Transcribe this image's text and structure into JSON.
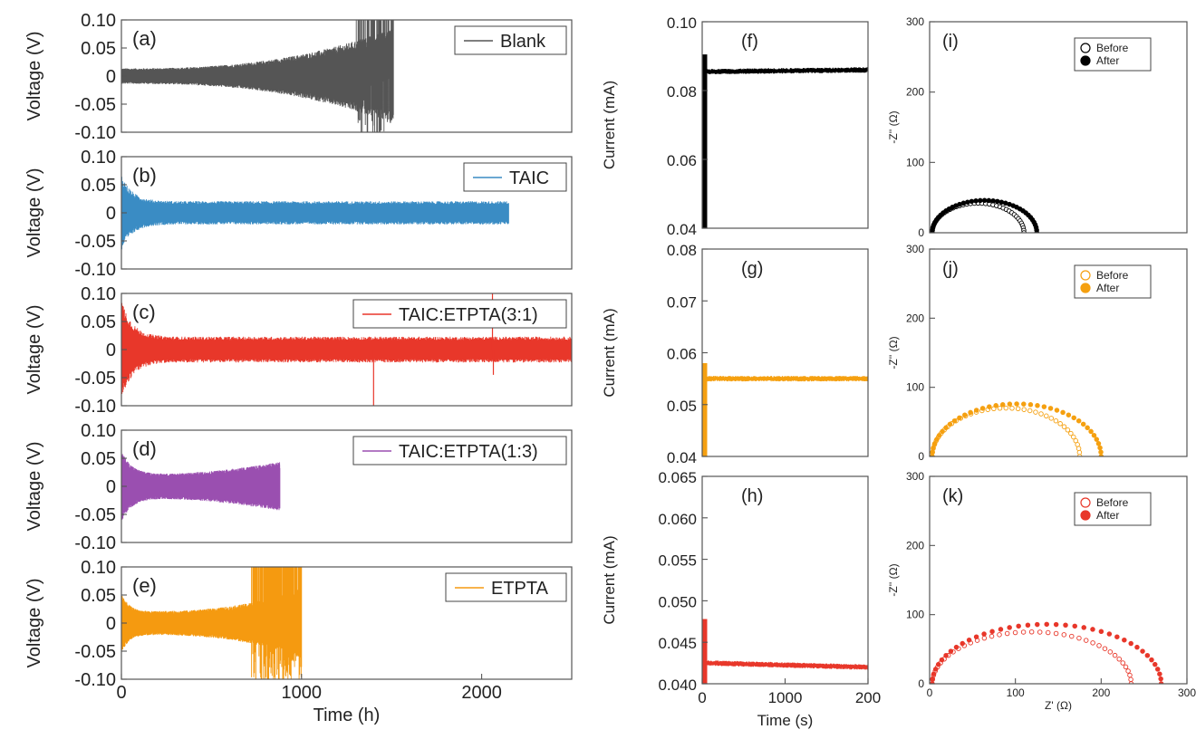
{
  "chart_data": [
    {
      "type": "line",
      "panel_label": "(a)",
      "series": [
        {
          "name": "Blank",
          "color": "#555555",
          "duration_h": 1510,
          "amp_start": 0.012,
          "amp_end": 0.075,
          "overflow_from_h": 1300
        }
      ],
      "ylabel": "Voltage (V)",
      "ylim": [
        -0.1,
        0.1
      ],
      "yticks": [
        "0.10",
        "0.05",
        "0",
        "-0.05",
        "-0.10"
      ],
      "xlim": [
        0,
        2500
      ],
      "xticks": [],
      "xlabel": ""
    },
    {
      "type": "line",
      "panel_label": "(b)",
      "series": [
        {
          "name": "TAIC",
          "color": "#3a8cc4",
          "duration_h": 2150,
          "amp_start": 0.06,
          "amp_end": 0.018
        }
      ],
      "ylabel": "Voltage (V)",
      "ylim": [
        -0.1,
        0.1
      ],
      "yticks": [
        "0.10",
        "0.05",
        "0",
        "-0.05",
        "-0.10"
      ],
      "xlim": [
        0,
        2500
      ],
      "xticks": [],
      "xlabel": ""
    },
    {
      "type": "line",
      "panel_label": "(c)",
      "series": [
        {
          "name": "TAIC:ETPTA(3:1)",
          "color": "#e8372a",
          "duration_h": 2500,
          "amp_start": 0.08,
          "amp_end": 0.02,
          "spikes": [
            {
              "x": 1400,
              "y": -0.1
            },
            {
              "x": 2060,
              "y": 0.1
            },
            {
              "x": 2065,
              "y": -0.045
            }
          ]
        }
      ],
      "ylabel": "Voltage (V)",
      "ylim": [
        -0.1,
        0.1
      ],
      "yticks": [
        "0.10",
        "0.05",
        "0",
        "-0.05",
        "-0.10"
      ],
      "xlim": [
        0,
        2500
      ],
      "xticks": [],
      "xlabel": ""
    },
    {
      "type": "line",
      "panel_label": "(d)",
      "series": [
        {
          "name": "TAIC:ETPTA(1:3)",
          "color": "#9a4fb0",
          "duration_h": 880,
          "amp_start": 0.055,
          "amp_end": 0.038
        }
      ],
      "ylabel": "Voltage (V)",
      "ylim": [
        -0.1,
        0.1
      ],
      "yticks": [
        "0.10",
        "0.05",
        "0",
        "-0.05",
        "-0.10"
      ],
      "xlim": [
        0,
        2500
      ],
      "xticks": [],
      "xlabel": ""
    },
    {
      "type": "line",
      "panel_label": "(e)",
      "series": [
        {
          "name": "ETPTA",
          "color": "#f59a10",
          "duration_h": 1000,
          "amp_start": 0.045,
          "amp_end": 0.055,
          "overflow_from_h": 720
        }
      ],
      "ylabel": "Voltage (V)",
      "ylim": [
        -0.1,
        0.1
      ],
      "yticks": [
        "0.10",
        "0.05",
        "0",
        "-0.05",
        "-0.10"
      ],
      "xlim": [
        0,
        2500
      ],
      "xticks": [
        "0",
        "1000",
        "2000"
      ],
      "xlabel": "Time (h)"
    },
    {
      "type": "line",
      "panel_label": "(f)",
      "series": [
        {
          "color": "#000000",
          "steady": 0.0855,
          "peak": 0.0905,
          "end": 0.086
        }
      ],
      "ylabel": "Current (mA)",
      "ylim": [
        0.04,
        0.1
      ],
      "yticks": [
        "0.10",
        "0.08",
        "0.06",
        "0.04"
      ],
      "xlim": [
        0,
        2000
      ],
      "xticks": [],
      "xlabel": ""
    },
    {
      "type": "line",
      "panel_label": "(g)",
      "series": [
        {
          "color": "#f5a010",
          "steady": 0.055,
          "peak": 0.058,
          "end": 0.055
        }
      ],
      "ylabel": "Current (mA)",
      "ylim": [
        0.04,
        0.08
      ],
      "yticks": [
        "0.08",
        "0.07",
        "0.06",
        "0.05",
        "0.04"
      ],
      "xlim": [
        0,
        2000
      ],
      "xticks": [],
      "xlabel": ""
    },
    {
      "type": "line",
      "panel_label": "(h)",
      "series": [
        {
          "color": "#e8372a",
          "steady": 0.0425,
          "peak": 0.0478,
          "end": 0.042
        }
      ],
      "ylabel": "Current (mA)",
      "ylim": [
        0.04,
        0.065
      ],
      "yticks": [
        "0.065",
        "0.060",
        "0.055",
        "0.050",
        "0.045",
        "0.040"
      ],
      "xlim": [
        0,
        2000
      ],
      "xticks": [
        "0",
        "1000",
        "200"
      ],
      "xlabel": "Time (s)"
    },
    {
      "type": "scatter",
      "panel_label": "(i)",
      "series": [
        {
          "name": "Before",
          "color": "#000000",
          "filled": false,
          "x_start": 3,
          "x_end": 110,
          "height": 42
        },
        {
          "name": "After",
          "color": "#000000",
          "filled": true,
          "x_start": 3,
          "x_end": 125,
          "height": 46
        }
      ],
      "ylabel": "-Z'' (Ω)",
      "ylim": [
        0,
        300
      ],
      "yticks": [
        "300",
        "200",
        "100",
        "0"
      ],
      "xlim": [
        0,
        300
      ],
      "xticks": [],
      "xlabel": ""
    },
    {
      "type": "scatter",
      "panel_label": "(j)",
      "series": [
        {
          "name": "Before",
          "color": "#f5a010",
          "filled": false,
          "x_start": 3,
          "x_end": 175,
          "height": 70
        },
        {
          "name": "After",
          "color": "#f5a010",
          "filled": true,
          "x_start": 3,
          "x_end": 200,
          "height": 76
        }
      ],
      "ylabel": "-Z'' (Ω)",
      "ylim": [
        0,
        300
      ],
      "yticks": [
        "300",
        "200",
        "100",
        "0"
      ],
      "xlim": [
        0,
        300
      ],
      "xticks": [],
      "xlabel": ""
    },
    {
      "type": "scatter",
      "panel_label": "(k)",
      "series": [
        {
          "name": "Before",
          "color": "#e8372a",
          "filled": false,
          "x_start": 3,
          "x_end": 235,
          "height": 75
        },
        {
          "name": "After",
          "color": "#e8372a",
          "filled": true,
          "x_start": 3,
          "x_end": 270,
          "height": 86
        }
      ],
      "ylabel": "-Z'' (Ω)",
      "ylim": [
        0,
        300
      ],
      "yticks": [
        "300",
        "200",
        "100",
        "0"
      ],
      "xlim": [
        0,
        300
      ],
      "xticks": [
        "0",
        "100",
        "200",
        "300"
      ],
      "xlabel": "Z' (Ω)"
    }
  ]
}
